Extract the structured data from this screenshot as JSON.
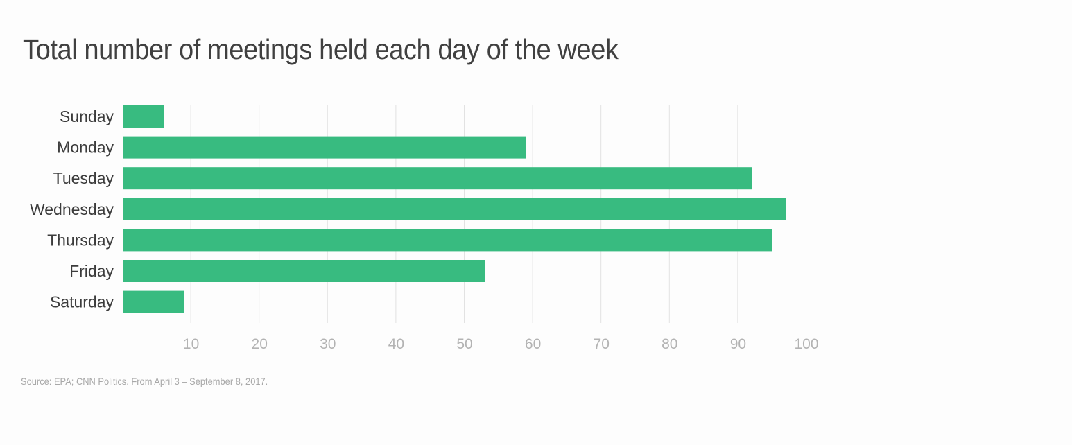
{
  "chart_data": {
    "type": "bar",
    "orientation": "horizontal",
    "title": "Total number of meetings held each day of the week",
    "categories": [
      "Sunday",
      "Monday",
      "Tuesday",
      "Wednesday",
      "Thursday",
      "Friday",
      "Saturday"
    ],
    "values": [
      6,
      59,
      92,
      97,
      95,
      53,
      9
    ],
    "xlim": [
      0,
      100
    ],
    "xticks": [
      10,
      20,
      30,
      40,
      50,
      60,
      70,
      80,
      90,
      100
    ],
    "grid": true,
    "bar_color": "#38bb80",
    "source": "Source: EPA; CNN Politics. From April 3 – September 8, 2017."
  }
}
